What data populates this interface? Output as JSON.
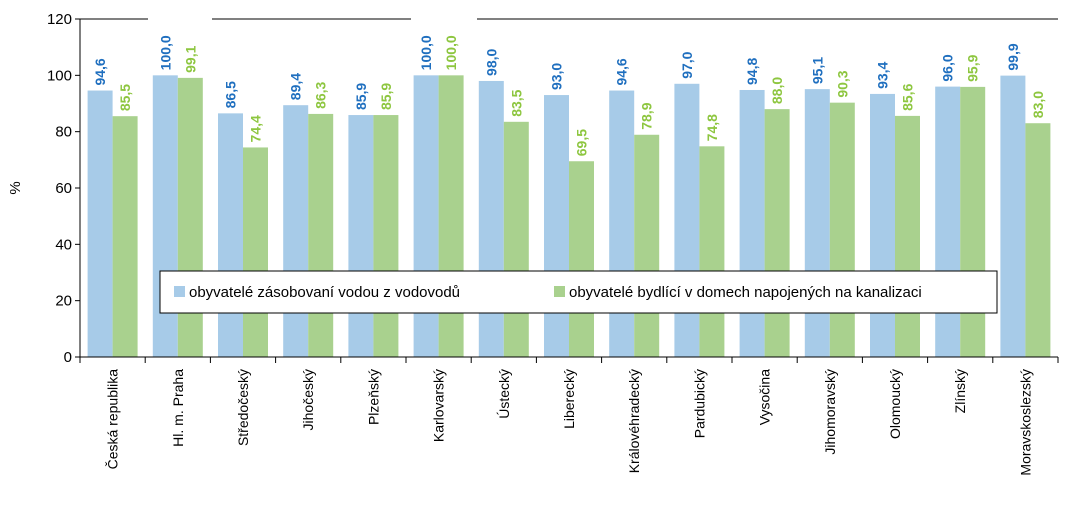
{
  "chart_data": {
    "type": "bar",
    "title": "",
    "xlabel": "",
    "ylabel": "%",
    "ylim": [
      0,
      120
    ],
    "yticks": [
      0,
      20,
      40,
      60,
      80,
      100,
      120
    ],
    "grid": false,
    "legend_position": "bottom-center, inside plot",
    "categories": [
      "Česká republika",
      "Hl. m. Praha",
      "Středočeský",
      "Jihočeský",
      "Plzeňský",
      "Karlovarský",
      "Ústecký",
      "Liberecký",
      "Královéhradecký",
      "Pardubický",
      "Vysočina",
      "Jihomoravský",
      "Olomoucký",
      "Zlínský",
      "Moravskoslezský"
    ],
    "series": [
      {
        "name": "obyvatelé zásobovaní vodou z vodovodů",
        "color": "#a7cbe8",
        "label_color": "#1f6fbf",
        "values": [
          94.6,
          100.0,
          86.5,
          89.4,
          85.9,
          100.0,
          98.0,
          93.0,
          94.6,
          97.0,
          94.8,
          95.1,
          93.4,
          96.0,
          99.9
        ],
        "labels": [
          "94,6",
          "100,0",
          "86,5",
          "89,4",
          "85,9",
          "100,0",
          "98,0",
          "93,0",
          "94,6",
          "97,0",
          "94,8",
          "95,1",
          "93,4",
          "96,0",
          "99,9"
        ]
      },
      {
        "name": "obyvatelé bydlící v domech napojených na kanalizaci",
        "color": "#a9d18e",
        "label_color": "#8dc63f",
        "values": [
          85.5,
          99.1,
          74.4,
          86.3,
          85.9,
          100.0,
          83.5,
          69.5,
          78.9,
          74.8,
          88.0,
          90.3,
          85.6,
          95.9,
          83.0
        ],
        "labels": [
          "85,5",
          "99,1",
          "74,4",
          "86,3",
          "85,9",
          "100,0",
          "83,5",
          "69,5",
          "78,9",
          "74,8",
          "88,0",
          "90,3",
          "85,6",
          "95,9",
          "83,0"
        ]
      }
    ]
  }
}
